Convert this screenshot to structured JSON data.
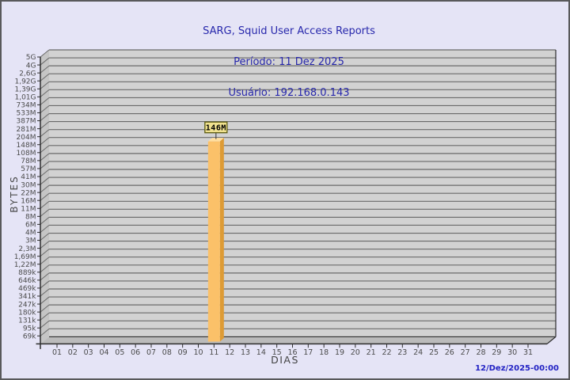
{
  "header": {
    "title": "SARG, Squid User Access Reports",
    "period": "Período: 11 Dez 2025",
    "user": "Usuário: 192.168.0.143"
  },
  "axis_titles": {
    "y": "BYTES",
    "x": "DIAS"
  },
  "footer": {
    "timestamp": "12/Dez/2025-00:00"
  },
  "colors": {
    "page_bg": "#e5e4f6",
    "title_text": "#2828ac",
    "timestamp_text": "#2222c4",
    "plot_bg": "#d2d2d2",
    "wall_bg": "#c5c5c5",
    "floor_bg": "#bbbbbb",
    "grid_line": "#6a6a6a",
    "axis_line": "#2e2e2e",
    "tick_text": "#4b4b4b",
    "bar_front": "#fbc169",
    "bar_side": "#dd9b35",
    "bar_top": "#ffdfa0",
    "label_box_bg": "#f0e28f",
    "label_box_border": "#5a5a10",
    "label_box_text": "#000000"
  },
  "chart_data": {
    "type": "bar",
    "style": "3d",
    "title": "SARG, Squid User Access Reports",
    "period": "Período: 11 Dez 2025",
    "user": "Usuário: 192.168.0.143",
    "xlabel": "DIAS",
    "ylabel": "BYTES",
    "y_scale": "log-like",
    "grid": true,
    "categories": [
      "01",
      "02",
      "03",
      "04",
      "05",
      "06",
      "07",
      "08",
      "09",
      "10",
      "11",
      "12",
      "13",
      "14",
      "15",
      "16",
      "17",
      "18",
      "19",
      "20",
      "21",
      "22",
      "23",
      "24",
      "25",
      "26",
      "27",
      "28",
      "29",
      "30",
      "31"
    ],
    "values": [
      0,
      0,
      0,
      0,
      0,
      0,
      0,
      0,
      0,
      0,
      146000000,
      0,
      0,
      0,
      0,
      0,
      0,
      0,
      0,
      0,
      0,
      0,
      0,
      0,
      0,
      0,
      0,
      0,
      0,
      0,
      0
    ],
    "bar_value_labels": {
      "11": "146M"
    },
    "y_tick_labels": [
      "5G",
      "4G",
      "2,6G",
      "1,92G",
      "1,39G",
      "1,01G",
      "734M",
      "533M",
      "387M",
      "281M",
      "204M",
      "148M",
      "108M",
      "78M",
      "57M",
      "41M",
      "30M",
      "22M",
      "16M",
      "11M",
      "8M",
      "6M",
      "4M",
      "3M",
      "2,3M",
      "1,69M",
      "1,22M",
      "889k",
      "646k",
      "469k",
      "341k",
      "247k",
      "180k",
      "131k",
      "95k",
      "69k"
    ],
    "generated": "12/Dez/2025-00:00"
  }
}
